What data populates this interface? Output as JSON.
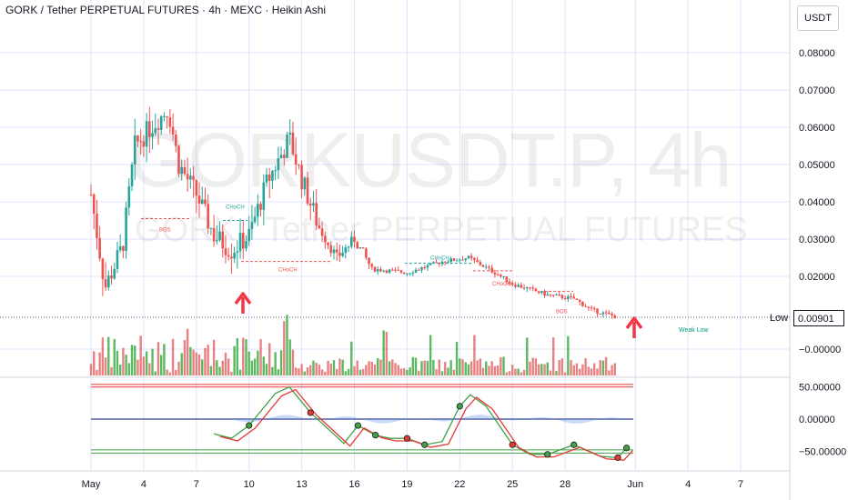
{
  "header": {
    "title": "GORK / Tether PERPETUAL FUTURES · 4h · MEXC · Heikin Ashi",
    "currency": "USDT"
  },
  "watermark": {
    "symbol": "GORKUSDT.P, 4h",
    "description": "GORK / Tether PERPETUAL FUTURES"
  },
  "price_axis": {
    "ticks": [
      "0.08000",
      "0.07000",
      "0.06000",
      "0.05000",
      "0.04000",
      "0.03000",
      "0.02000",
      "−0.00000"
    ],
    "low_label": "Low",
    "low_value": "0.00901"
  },
  "oscillator_axis": {
    "ticks": [
      "50.00000",
      "0.00000",
      "−50.00000"
    ]
  },
  "time_axis": {
    "ticks": [
      "May",
      "4",
      "7",
      "10",
      "13",
      "16",
      "19",
      "22",
      "25",
      "28",
      "Jun",
      "4",
      "7"
    ]
  },
  "annotations": {
    "bos_1": "BOS",
    "choch_1": "CHoCH",
    "choch_2": "CHoCH",
    "choch_3": "CHoCH",
    "choch_4": "CHoCH",
    "bos_2": "BOS",
    "weak_low": "Weak Low"
  },
  "colors": {
    "up": "#26a69a",
    "down": "#ef5350",
    "vol_up": "#4caf50",
    "vol_down": "#e57373",
    "grid": "#dfe3ff",
    "arrow": "#f23645"
  },
  "chart_data": {
    "type": "candlestick",
    "title": "GORK / Tether PERPETUAL FUTURES · 4h · MEXC · Heikin Ashi",
    "ylim": [
      -0.007,
      0.086
    ],
    "grid": true,
    "price_path": [
      {
        "day": 1,
        "close": 0.042
      },
      {
        "day": 1.8,
        "close": 0.017
      },
      {
        "day": 2.8,
        "close": 0.028
      },
      {
        "day": 3.5,
        "close": 0.055
      },
      {
        "day": 4.4,
        "close": 0.06
      },
      {
        "day": 5.4,
        "close": 0.065
      },
      {
        "day": 6,
        "close": 0.05
      },
      {
        "day": 7,
        "close": 0.042
      },
      {
        "day": 8,
        "close": 0.031
      },
      {
        "day": 9,
        "close": 0.027
      },
      {
        "day": 10,
        "close": 0.031
      },
      {
        "day": 11,
        "close": 0.045
      },
      {
        "day": 12.3,
        "close": 0.057
      },
      {
        "day": 13,
        "close": 0.046
      },
      {
        "day": 14,
        "close": 0.033
      },
      {
        "day": 15,
        "close": 0.025
      },
      {
        "day": 16,
        "close": 0.03
      },
      {
        "day": 17,
        "close": 0.022
      },
      {
        "day": 19,
        "close": 0.021
      },
      {
        "day": 21,
        "close": 0.024
      },
      {
        "day": 22.5,
        "close": 0.025
      },
      {
        "day": 24,
        "close": 0.021
      },
      {
        "day": 25,
        "close": 0.018
      },
      {
        "day": 27,
        "close": 0.015
      },
      {
        "day": 28.5,
        "close": 0.014
      },
      {
        "day": 29.5,
        "close": 0.011
      },
      {
        "day": 31,
        "close": 0.00901
      }
    ],
    "volume_panel": true,
    "oscillator": {
      "ylim": [
        -60,
        60
      ],
      "levels": [
        50,
        0,
        -50
      ],
      "path": [
        {
          "day": 8,
          "value": -23
        },
        {
          "day": 9,
          "value": -30
        },
        {
          "day": 10,
          "value": -10
        },
        {
          "day": 11.5,
          "value": 40
        },
        {
          "day": 12.3,
          "value": 50
        },
        {
          "day": 13.5,
          "value": 10
        },
        {
          "day": 15.4,
          "value": -38
        },
        {
          "day": 16.2,
          "value": -10
        },
        {
          "day": 17.2,
          "value": -25
        },
        {
          "day": 18,
          "value": -30
        },
        {
          "day": 19,
          "value": -30
        },
        {
          "day": 20,
          "value": -40
        },
        {
          "day": 21,
          "value": -35
        },
        {
          "day": 22,
          "value": 20
        },
        {
          "day": 22.6,
          "value": 38
        },
        {
          "day": 23.5,
          "value": 20
        },
        {
          "day": 25,
          "value": -40
        },
        {
          "day": 26,
          "value": -55
        },
        {
          "day": 27,
          "value": -55
        },
        {
          "day": 28.5,
          "value": -40
        },
        {
          "day": 30,
          "value": -58
        },
        {
          "day": 31,
          "value": -60
        },
        {
          "day": 31.5,
          "value": -45
        }
      ]
    }
  }
}
